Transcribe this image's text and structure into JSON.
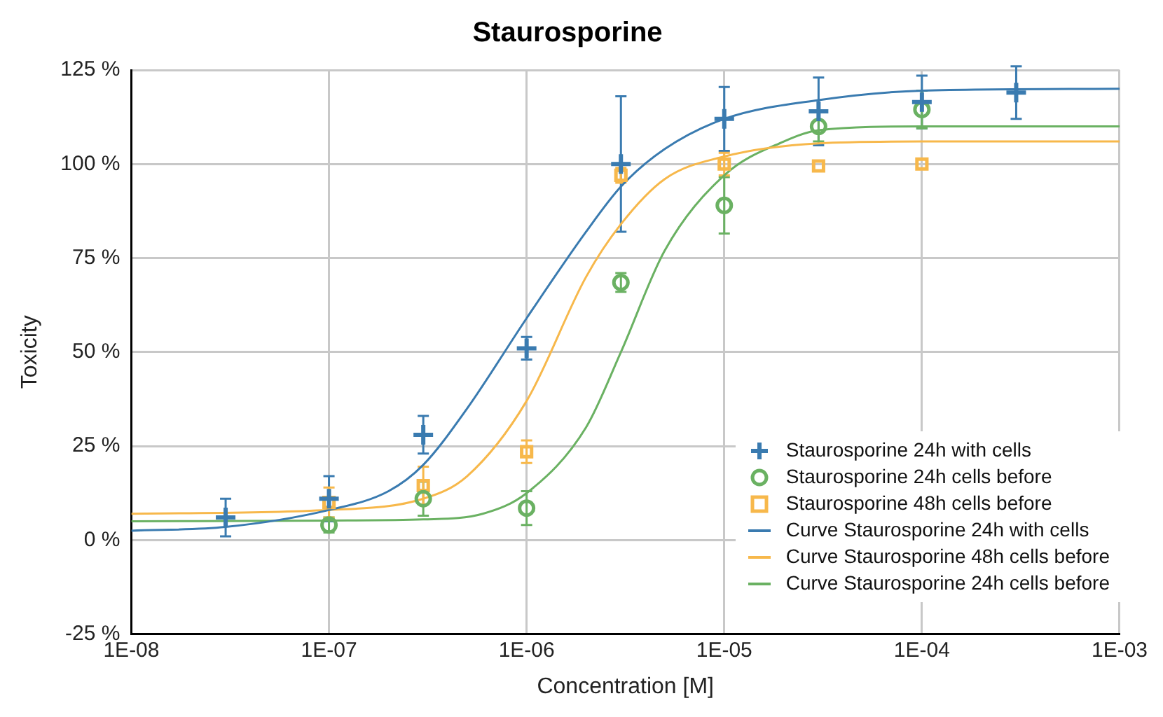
{
  "chart_data": {
    "type": "scatter",
    "title": "Staurosporine",
    "xlabel": "Concentration [M]",
    "ylabel": "Toxicity",
    "log": "x",
    "grid": true,
    "legend": "bottom right",
    "xlim": [
      1e-08,
      0.001
    ],
    "xticks": [
      {
        "value": 1e-08,
        "label": "1E-08"
      },
      {
        "value": 1e-07,
        "label": "1E-07"
      },
      {
        "value": 1e-06,
        "label": "1E-06"
      },
      {
        "value": 1e-05,
        "label": "1E-05"
      },
      {
        "value": 0.0001,
        "label": "1E-04"
      },
      {
        "value": 0.001,
        "label": "1E-03"
      }
    ],
    "ylim": [
      -25,
      125
    ],
    "yticks": [
      {
        "value": -25,
        "label": "-25 %"
      },
      {
        "value": 0,
        "label": "0 %"
      },
      {
        "value": 25,
        "label": "25 %"
      },
      {
        "value": 50,
        "label": "50 %"
      },
      {
        "value": 75,
        "label": "75 %"
      },
      {
        "value": 100,
        "label": "100 %"
      },
      {
        "value": 125,
        "label": "125 %"
      }
    ],
    "series": [
      {
        "name": "Staurosporine 24h with cells",
        "type": "scatter",
        "marker": "cross",
        "color": "#3a7bb0",
        "x": [
          3e-08,
          1e-07,
          3e-07,
          1e-06,
          3e-06,
          1e-05,
          3e-05,
          0.0001,
          0.0003
        ],
        "values": [
          6,
          11,
          28,
          51,
          100,
          112,
          114,
          116.5,
          119
        ],
        "errors": [
          5,
          6,
          5,
          3,
          18,
          8.5,
          9,
          7,
          7
        ]
      },
      {
        "name": "Staurosporine 24h cells before",
        "type": "scatter",
        "marker": "circle",
        "color": "#6ab162",
        "x": [
          1e-07,
          3e-07,
          1e-06,
          3e-06,
          1e-05,
          3e-05,
          0.0001
        ],
        "values": [
          4,
          11,
          8.5,
          68.5,
          89,
          110,
          114.5
        ],
        "errors": [
          2,
          4.5,
          4.5,
          2.5,
          7.5,
          4,
          5
        ]
      },
      {
        "name": "Staurosporine 48h cells before",
        "type": "scatter",
        "marker": "square",
        "color": "#f7b84b",
        "x": [
          1e-07,
          3e-07,
          1e-06,
          3e-06,
          1e-05,
          3e-05,
          0.0001
        ],
        "values": [
          10,
          14.5,
          23.5,
          97,
          100,
          99.5,
          100
        ],
        "errors": [
          4,
          5,
          3,
          2,
          3,
          null,
          null
        ]
      },
      {
        "name": "Curve Staurosporine 24h with cells",
        "type": "line",
        "marker": "none",
        "line_style": "solid",
        "color": "#3a7bb0",
        "x": [
          1e-08,
          3e-08,
          1e-07,
          2e-07,
          3e-07,
          5e-07,
          1e-06,
          2e-06,
          3e-06,
          5e-06,
          1e-05,
          3e-05,
          0.0001,
          0.001
        ],
        "values": [
          2.5,
          3.5,
          8,
          13,
          20,
          35,
          59,
          82,
          94,
          104,
          112,
          117,
          119.5,
          120
        ]
      },
      {
        "name": "Curve Staurosporine 48h cells before",
        "type": "line",
        "marker": "none",
        "line_style": "solid",
        "color": "#f7b84b",
        "x": [
          1e-08,
          1e-07,
          3e-07,
          5e-07,
          1e-06,
          2e-06,
          3e-06,
          5e-06,
          1e-05,
          3e-05,
          0.0001,
          0.001
        ],
        "values": [
          7,
          8,
          11,
          17,
          37,
          70,
          84,
          96,
          102,
          105.5,
          106,
          106
        ]
      },
      {
        "name": "Curve Staurosporine 24h cells before",
        "type": "line",
        "marker": "none",
        "line_style": "solid",
        "color": "#6ab162",
        "x": [
          1e-08,
          1e-07,
          3e-07,
          6e-07,
          1e-06,
          2e-06,
          3e-06,
          5e-06,
          1e-05,
          2e-05,
          3e-05,
          0.0001,
          0.001
        ],
        "values": [
          5,
          5.2,
          5.5,
          7,
          12.5,
          30,
          50,
          77,
          97,
          106,
          109,
          110,
          110
        ]
      }
    ]
  }
}
